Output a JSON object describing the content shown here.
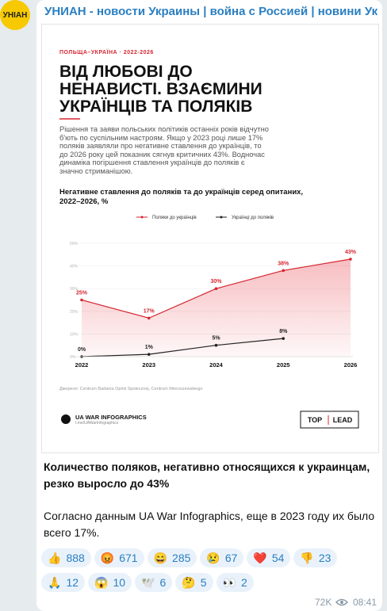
{
  "channel": {
    "avatar_text": "УНІАН",
    "name": "УНИАН - новости Украины | война с Россией | новини Україн..."
  },
  "infographic": {
    "kicker": "ПОЛЬЩА–УКРАЇНА · 2022-2026",
    "title_lines": [
      "ВІД ЛЮБОВІ ДО",
      "НЕНАВИСТІ. ВЗАЄМИНИ",
      "УКРАЇНЦІВ ТА ПОЛЯКІВ"
    ],
    "body_lines": [
      "Рішення та заяви польських політиків останніх років відчутно",
      "б'ють по суспільним настроям. Якщо у 2023 році лише 17%",
      "поляків заявляли про негативне ставлення до українців, то",
      "до 2026 року цей показник сягнув критичних 43%. Водночас",
      "динаміка погіршення ставлення українців до поляків є",
      "значно стриманішою."
    ],
    "source": "Джерело: Centrum Badania Opinii Społecznej, Centrum Mieroszewskiego",
    "brand": "UA WAR INFOGRAPHICS",
    "brand_link": "t.me/UAWarInfographics",
    "logo_left": "TOP",
    "logo_right": "LEAD"
  },
  "chart_data": {
    "type": "line",
    "title_lines": [
      "Негативне ставлення до поляків та до українців серед опитаних,",
      "2022–2026, %"
    ],
    "categories": [
      "2022",
      "2023",
      "2024",
      "2025",
      "2026"
    ],
    "series": [
      {
        "name": "Поляки до українців",
        "color": "#d62631",
        "values": [
          25,
          17,
          30,
          38,
          43
        ],
        "value_labels": [
          "25%",
          "17%",
          "30%",
          "38%",
          "43%"
        ]
      },
      {
        "name": "Українці до поляків",
        "color": "#222222",
        "values": [
          0,
          1,
          5,
          8,
          null
        ],
        "value_labels": [
          "0%",
          "1%",
          "5%",
          "8%",
          null
        ]
      }
    ],
    "ylim": [
      0,
      50
    ],
    "yticks": [
      {
        "value": 0,
        "label": "0%"
      },
      {
        "value": 10,
        "label": "10%"
      },
      {
        "value": 20,
        "label": "20%"
      },
      {
        "value": 30,
        "label": "30%"
      },
      {
        "value": 40,
        "label": "40%"
      },
      {
        "value": 50,
        "label": "50%"
      }
    ],
    "grid": true
  },
  "post": {
    "headline_lines": [
      "Количество поляков, негативно относящихся к украинцам,",
      "резко выросло до 43%"
    ],
    "text_lines": [
      "Согласно данным UA War Infographics, еще в 2023 году их было",
      "всего 17%."
    ]
  },
  "reactions": [
    {
      "emoji": "👍",
      "count": 888
    },
    {
      "emoji": "😡",
      "count": 671
    },
    {
      "emoji": "😄",
      "count": 285
    },
    {
      "emoji": "😢",
      "count": 67
    },
    {
      "emoji": "❤️",
      "count": 54
    },
    {
      "emoji": "👎",
      "count": 23
    },
    {
      "emoji": "🙏",
      "count": 12
    },
    {
      "emoji": "😱",
      "count": 10
    },
    {
      "emoji": "🕊️",
      "count": 6
    },
    {
      "emoji": "🤔",
      "count": 5
    },
    {
      "emoji": "👀",
      "count": 2
    }
  ],
  "footer": {
    "views": "72K",
    "time": "08:41"
  }
}
